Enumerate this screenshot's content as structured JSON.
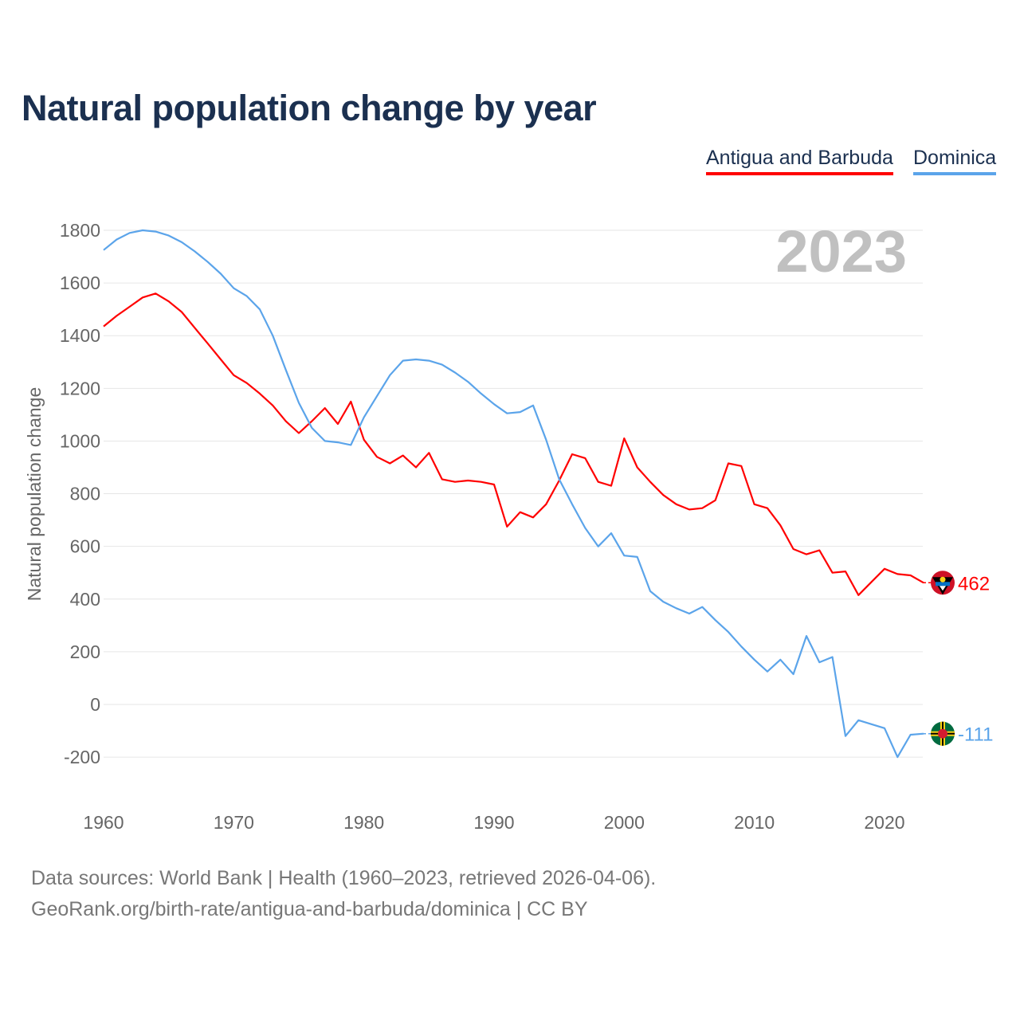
{
  "chart_data": {
    "type": "line",
    "title": "Natural population change by year",
    "ylabel": "Natural population change",
    "xlabel": "",
    "year_label": "2023",
    "xlim": [
      1960,
      2023
    ],
    "ylim": [
      -200,
      1800
    ],
    "x_ticks": [
      1960,
      1970,
      1980,
      1990,
      2000,
      2010,
      2020
    ],
    "y_ticks": [
      -200,
      0,
      200,
      400,
      600,
      800,
      1000,
      1200,
      1400,
      1600,
      1800
    ],
    "grid": true,
    "legend_position": "top-right",
    "x": [
      1960,
      1961,
      1962,
      1963,
      1964,
      1965,
      1966,
      1967,
      1968,
      1969,
      1970,
      1971,
      1972,
      1973,
      1974,
      1975,
      1976,
      1977,
      1978,
      1979,
      1980,
      1981,
      1982,
      1983,
      1984,
      1985,
      1986,
      1987,
      1988,
      1989,
      1990,
      1991,
      1992,
      1993,
      1994,
      1995,
      1996,
      1997,
      1998,
      1999,
      2000,
      2001,
      2002,
      2003,
      2004,
      2005,
      2006,
      2007,
      2008,
      2009,
      2010,
      2011,
      2012,
      2013,
      2014,
      2015,
      2016,
      2017,
      2018,
      2019,
      2020,
      2021,
      2022,
      2023
    ],
    "series": [
      {
        "name": "Antigua and Barbuda",
        "color": "#ff0000",
        "end_label": "462",
        "values": [
          1435,
          1475,
          1510,
          1545,
          1560,
          1530,
          1490,
          1430,
          1370,
          1310,
          1250,
          1220,
          1180,
          1135,
          1075,
          1030,
          1075,
          1125,
          1065,
          1150,
          1005,
          940,
          915,
          945,
          900,
          955,
          855,
          845,
          850,
          845,
          835,
          675,
          730,
          710,
          760,
          850,
          950,
          935,
          845,
          830,
          1010,
          900,
          845,
          795,
          760,
          740,
          745,
          775,
          915,
          905,
          760,
          745,
          680,
          590,
          570,
          585,
          500,
          505,
          415,
          465,
          515,
          495,
          490,
          462
        ]
      },
      {
        "name": "Dominica",
        "color": "#5ba4ea",
        "end_label": "-111",
        "values": [
          1725,
          1765,
          1790,
          1800,
          1795,
          1780,
          1755,
          1720,
          1680,
          1635,
          1580,
          1550,
          1500,
          1400,
          1270,
          1145,
          1050,
          1000,
          995,
          985,
          1090,
          1170,
          1250,
          1305,
          1310,
          1305,
          1290,
          1260,
          1225,
          1180,
          1140,
          1105,
          1110,
          1135,
          1005,
          855,
          760,
          670,
          600,
          650,
          565,
          560,
          430,
          390,
          365,
          345,
          370,
          320,
          275,
          220,
          170,
          125,
          170,
          115,
          260,
          160,
          180,
          -120,
          -60,
          -75,
          -90,
          -200,
          -115,
          -111
        ]
      }
    ]
  },
  "footer": {
    "line1": "Data sources: World Bank | Health (1960–2023, retrieved 2026-04-06).",
    "line2": "GeoRank.org/birth-rate/antigua-and-barbuda/dominica | CC BY"
  }
}
